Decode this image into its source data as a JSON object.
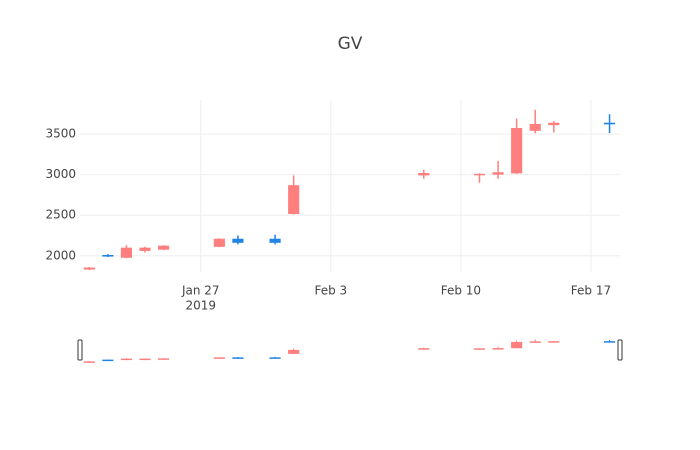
{
  "chart_data": {
    "type": "candlestick",
    "title": "GV",
    "x": [
      "2019-01-21",
      "2019-01-22",
      "2019-01-23",
      "2019-01-24",
      "2019-01-25",
      "2019-01-28",
      "2019-01-29",
      "2019-01-31",
      "2019-02-01",
      "2019-02-08",
      "2019-02-11",
      "2019-02-12",
      "2019-02-13",
      "2019-02-14",
      "2019-02-15",
      "2019-02-18"
    ],
    "open": [
      1855,
      1990,
      2100,
      2100,
      2125,
      2210,
      2160,
      2160,
      2870,
      3020,
      3010,
      3030,
      3575,
      3625,
      3640,
      3620
    ],
    "high": [
      1860,
      2020,
      2130,
      2110,
      2130,
      2215,
      2250,
      2260,
      2990,
      3060,
      3015,
      3170,
      3690,
      3800,
      3660,
      3745
    ],
    "low": [
      1825,
      1985,
      1970,
      2040,
      2070,
      2105,
      2140,
      2140,
      2510,
      2950,
      2900,
      2950,
      3010,
      3510,
      3520,
      3513
    ],
    "close": [
      1830,
      2010,
      1975,
      2060,
      2075,
      2110,
      2210,
      2210,
      2515,
      2990,
      2995,
      3000,
      3015,
      3540,
      3610,
      3640
    ],
    "increasing_color": "#1f84e6",
    "decreasing_color": "#ff7f7f",
    "xlim": [
      "2019-01-20T12:00",
      "2019-02-18T13:30"
    ],
    "xticks": [
      {
        "value": "2019-01-27",
        "label": "Jan 27"
      },
      {
        "value": "2019-02-03",
        "label": "Feb 3"
      },
      {
        "value": "2019-02-10",
        "label": "Feb 10"
      },
      {
        "value": "2019-02-17",
        "label": "Feb 17"
      }
    ],
    "xtick_year": "2019",
    "ylim": [
      1800,
      3920
    ],
    "yticks": [
      2000,
      2500,
      3000,
      3500
    ],
    "grid": true,
    "rangeslider": true
  }
}
